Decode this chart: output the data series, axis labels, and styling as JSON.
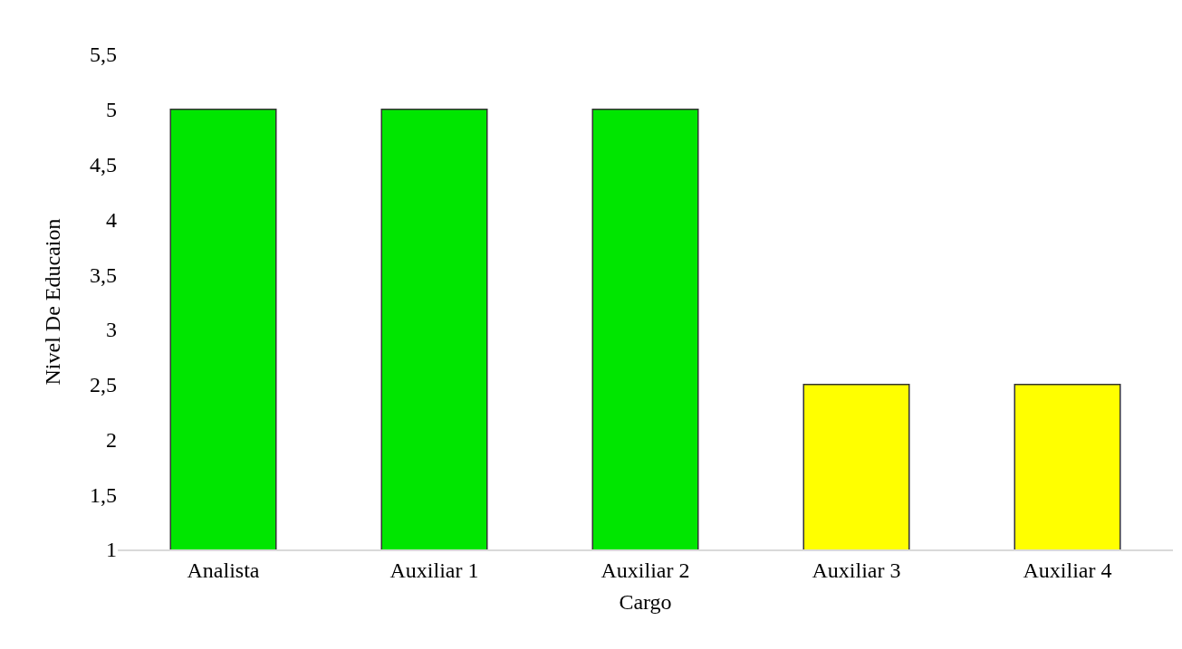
{
  "chart_data": {
    "type": "bar",
    "xlabel": "Cargo",
    "ylabel": "Nivel De Educaion",
    "categories": [
      "Analista",
      "Auxiliar 1",
      "Auxiliar 2",
      "Auxiliar 3",
      "Auxiliar 4"
    ],
    "values": [
      5,
      5,
      5,
      2.5,
      2.5
    ],
    "colors": [
      "#00e600",
      "#00e600",
      "#00e600",
      "#ffff00",
      "#ffff00"
    ],
    "ylim": [
      1,
      5.5
    ],
    "yticks": [
      1,
      {
        "value": 1.5,
        "label": "1,5"
      },
      2,
      {
        "value": 2.5,
        "label": "2,5"
      },
      3,
      {
        "value": 3.5,
        "label": "3,5"
      },
      4,
      {
        "value": 4.5,
        "label": "4,5"
      },
      5,
      {
        "value": 5.5,
        "label": "5,5"
      }
    ]
  }
}
